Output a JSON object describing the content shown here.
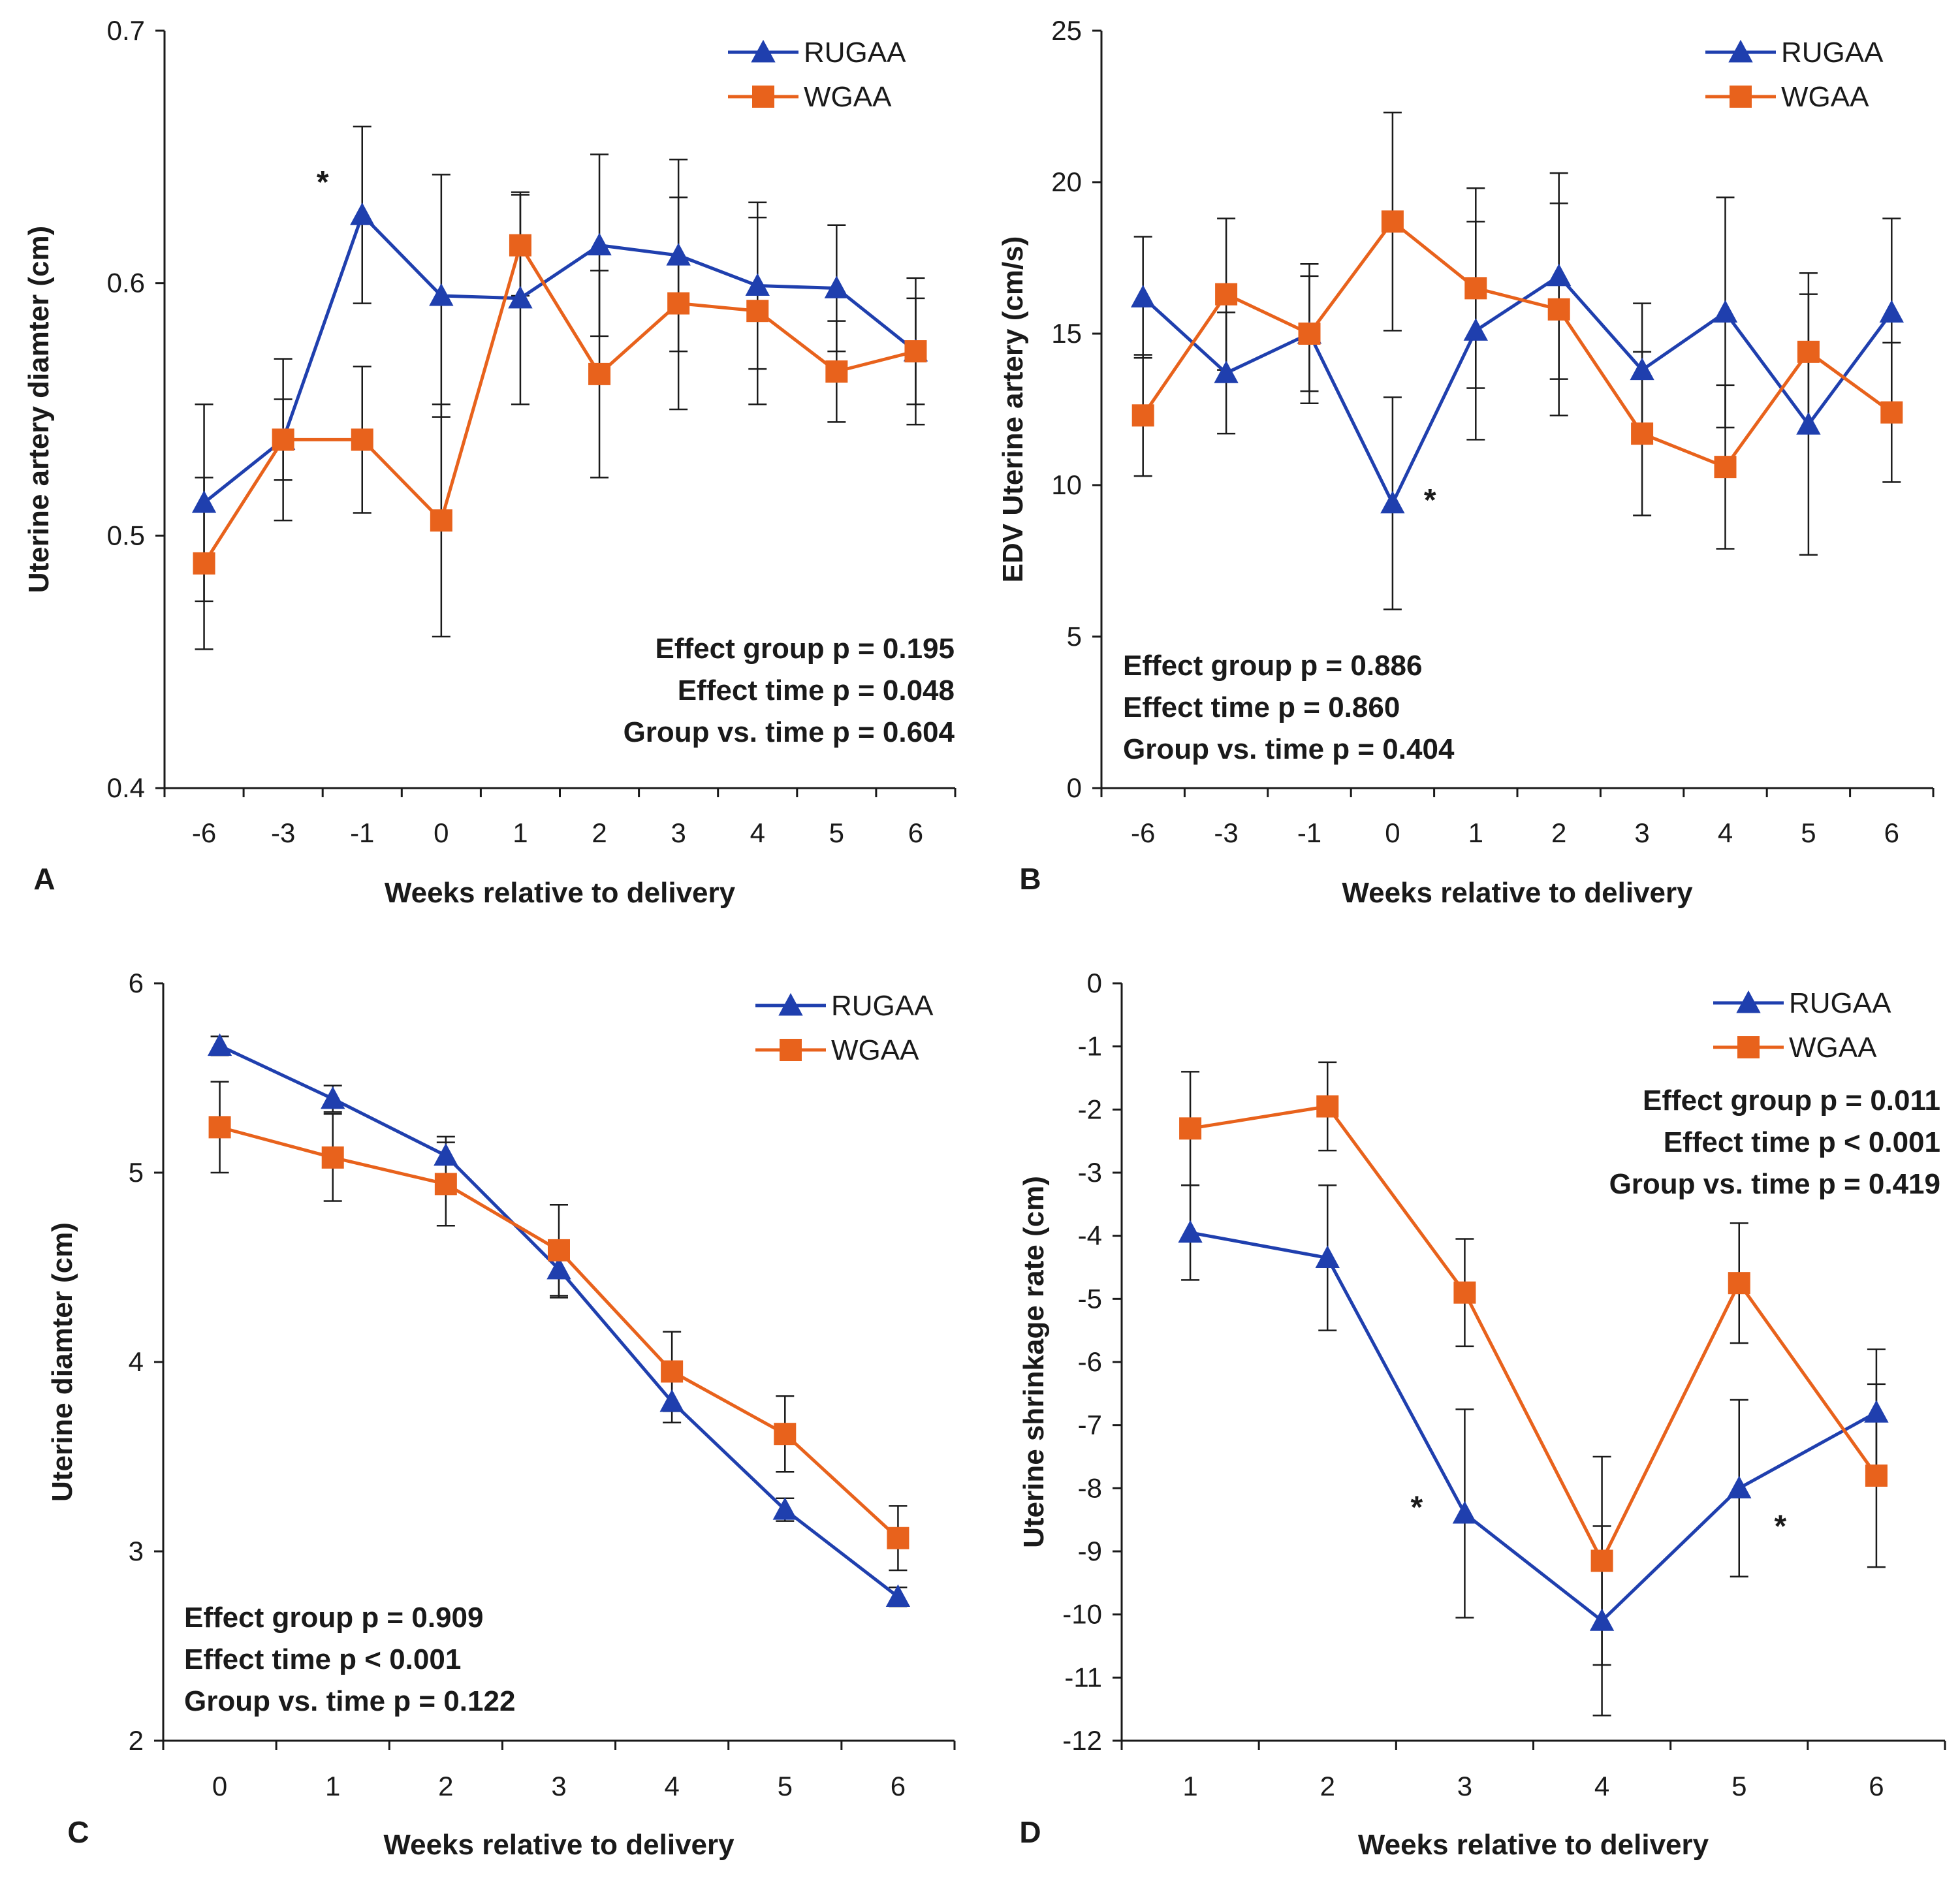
{
  "colors": {
    "rugaa": "#1f3fae",
    "wgaa": "#e8621c",
    "axis": "#1a1a1a",
    "error": "#1a1a1a"
  },
  "chart_data": [
    {
      "type": "line",
      "panel_label": "A",
      "categories": [
        "-6",
        "-3",
        "-1",
        "0",
        "1",
        "2",
        "3",
        "4",
        "5",
        "6"
      ],
      "series": [
        {
          "name": "RUGAA",
          "marker": "triangle",
          "values": [
            0.513,
            0.538,
            0.627,
            0.595,
            0.594,
            0.615,
            0.611,
            0.599,
            0.598,
            0.573
          ],
          "errors": [
            0.039,
            0.032,
            0.035,
            0.048,
            0.042,
            0.036,
            0.038,
            0.033,
            0.025,
            0.021
          ]
        },
        {
          "name": "WGAA",
          "marker": "square",
          "values": [
            0.489,
            0.538,
            0.538,
            0.506,
            0.615,
            0.564,
            0.592,
            0.589,
            0.565,
            0.573
          ],
          "errors": [
            0.034,
            0.016,
            0.029,
            0.046,
            0.02,
            0.041,
            0.042,
            0.037,
            0.02,
            0.029
          ]
        }
      ],
      "xlabel": "Weeks relative to delivery",
      "ylabel": "Uterine artery diamter (cm)",
      "ylim": [
        0.4,
        0.7
      ],
      "yticks": [
        0.4,
        0.5,
        0.6,
        0.7
      ],
      "ytick_labels": [
        "0.4",
        "0.5",
        "0.6",
        "0.7"
      ],
      "legend": {
        "placement": "top-right",
        "entries": [
          "RUGAA",
          "WGAA"
        ]
      },
      "annotations": [
        {
          "text": "*",
          "category_index": 1.5,
          "y": 0.64
        }
      ],
      "stats_placement": "bottom-right",
      "stats": [
        "Effect group p = 0.195",
        "Effect time p = 0.048",
        "Group vs. time p = 0.604"
      ]
    },
    {
      "type": "line",
      "panel_label": "B",
      "categories": [
        "-6",
        "-3",
        "-1",
        "0",
        "1",
        "2",
        "3",
        "4",
        "5",
        "6"
      ],
      "series": [
        {
          "name": "RUGAA",
          "marker": "triangle",
          "values": [
            16.2,
            13.7,
            15.0,
            9.4,
            15.1,
            16.9,
            13.8,
            15.7,
            12.0,
            15.7
          ],
          "errors": [
            2.0,
            2.0,
            2.3,
            3.5,
            3.6,
            3.4,
            2.2,
            3.8,
            4.3,
            3.1
          ]
        },
        {
          "name": "WGAA",
          "marker": "square",
          "values": [
            12.3,
            16.3,
            15.0,
            18.7,
            16.5,
            15.8,
            11.7,
            10.6,
            14.4,
            12.4
          ],
          "errors": [
            2.0,
            2.5,
            1.9,
            3.6,
            3.3,
            3.5,
            2.7,
            2.7,
            2.6,
            2.3
          ]
        }
      ],
      "xlabel": "Weeks relative to delivery",
      "ylabel": "EDV Uterine artery  (cm/s)",
      "ylim": [
        0,
        25
      ],
      "yticks": [
        0,
        5,
        10,
        15,
        20,
        25
      ],
      "ytick_labels": [
        "0",
        "5",
        "10",
        "15",
        "20",
        "25"
      ],
      "legend": {
        "placement": "top-right",
        "entries": [
          "RUGAA",
          "WGAA"
        ]
      },
      "annotations": [
        {
          "text": "*",
          "category_index": 3.45,
          "y": 9.5
        }
      ],
      "stats_placement": "bottom-left",
      "stats": [
        "Effect group p = 0.886",
        "Effect time p = 0.860",
        "Group vs. time p = 0.404"
      ]
    },
    {
      "type": "line",
      "panel_label": "C",
      "categories": [
        "0",
        "1",
        "2",
        "3",
        "4",
        "5",
        "6"
      ],
      "series": [
        {
          "name": "RUGAA",
          "marker": "triangle",
          "values": [
            5.67,
            5.39,
            5.09,
            4.49,
            3.79,
            3.22,
            2.76
          ],
          "errors": [
            0.05,
            0.07,
            0.1,
            0.15,
            0.11,
            0.06,
            0.05
          ]
        },
        {
          "name": "WGAA",
          "marker": "square",
          "values": [
            5.24,
            5.08,
            4.94,
            4.59,
            3.95,
            3.62,
            3.07
          ],
          "errors": [
            0.24,
            0.23,
            0.22,
            0.24,
            0.21,
            0.2,
            0.17
          ]
        }
      ],
      "xlabel": "Weeks relative to delivery",
      "ylabel": "Uterine diamter (cm)",
      "ylim": [
        2,
        6
      ],
      "yticks": [
        2,
        3,
        4,
        5,
        6
      ],
      "ytick_labels": [
        "2",
        "3",
        "4",
        "5",
        "6"
      ],
      "legend": {
        "placement": "top-right",
        "entries": [
          "RUGAA",
          "WGAA"
        ]
      },
      "annotations": [],
      "stats_placement": "bottom-left",
      "stats": [
        "Effect group p = 0.909",
        "Effect time p < 0.001",
        "Group vs. time p = 0.122"
      ]
    },
    {
      "type": "line",
      "panel_label": "D",
      "categories": [
        "1",
        "2",
        "3",
        "4",
        "5",
        "6"
      ],
      "series": [
        {
          "name": "RUGAA",
          "marker": "triangle",
          "values": [
            -3.95,
            -4.35,
            -8.4,
            -10.1,
            -8.0,
            -6.8
          ],
          "errors": [
            0.75,
            1.15,
            1.65,
            1.5,
            1.4,
            1.0
          ]
        },
        {
          "name": "WGAA",
          "marker": "square",
          "values": [
            -2.3,
            -1.95,
            -4.9,
            -9.15,
            -4.75,
            -7.8
          ],
          "errors": [
            0.9,
            0.7,
            0.85,
            1.65,
            0.95,
            1.45
          ]
        }
      ],
      "xlabel": "Weeks relative to delivery",
      "ylabel": "Uterine shrinkage rate (cm)",
      "ylim": [
        -12,
        0
      ],
      "yticks": [
        -12,
        -11,
        -10,
        -9,
        -8,
        -7,
        -6,
        -5,
        -4,
        -3,
        -2,
        -1,
        0
      ],
      "ytick_labels": [
        "-12",
        "-11",
        "-10",
        "-9",
        "-8",
        "-7",
        "-6",
        "-5",
        "-4",
        "-3",
        "-2",
        "-1",
        "0"
      ],
      "legend": {
        "placement": "top-right",
        "entries": [
          "RUGAA",
          "WGAA"
        ]
      },
      "annotations": [
        {
          "text": "*",
          "category_index": 1.65,
          "y": -8.3
        },
        {
          "text": "*",
          "category_index": 4.3,
          "y": -8.6
        }
      ],
      "stats_placement": "top-right",
      "stats": [
        "Effect group p = 0.011",
        "Effect time p < 0.001",
        "Group vs. time p = 0.419"
      ]
    }
  ]
}
